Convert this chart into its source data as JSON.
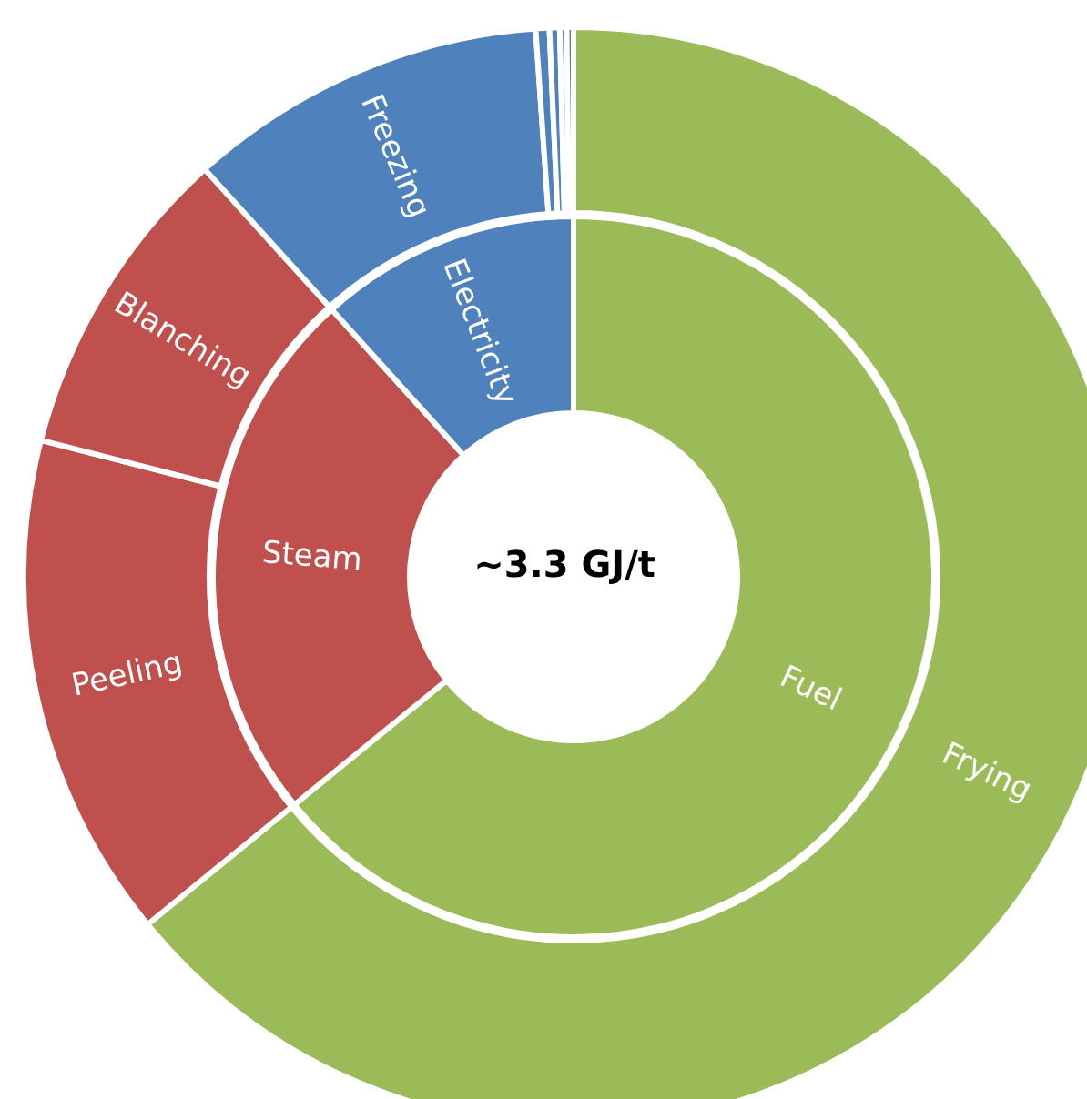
{
  "chart_data": [
    {
      "type": "donut",
      "annotations": [
        "~3.3 GJ/t"
      ],
      "categories": [
        "Fuel",
        "Steam",
        "Electricity"
      ],
      "values": [
        64.1,
        24.2,
        11.7
      ],
      "colors": [
        "#9bbb59",
        "#c0504d",
        "#4f81bd"
      ]
    },
    {
      "type": "donut",
      "categories": [
        "Frying",
        "Peeling",
        "Blanching",
        "Freezing",
        null,
        null,
        null,
        null
      ],
      "values": [
        64.1,
        14.9,
        9.3,
        10.6,
        0.4,
        0.3,
        0.2,
        0.2
      ],
      "colors": [
        "#9bbb59",
        "#c0504d",
        "#c0504d",
        "#4f81bd",
        "#4f81bd",
        "#4f81bd",
        "#4f81bd",
        "#4f81bd"
      ]
    }
  ]
}
